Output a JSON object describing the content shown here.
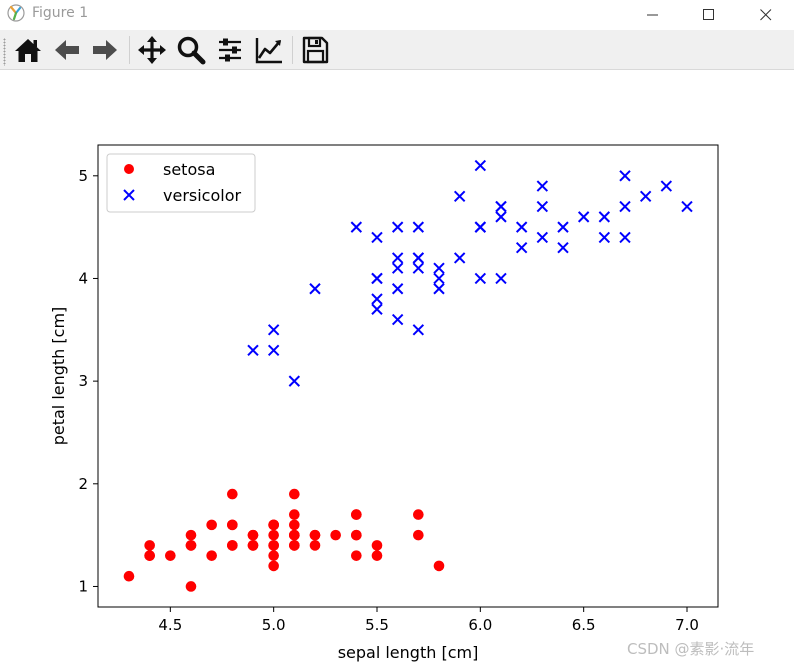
{
  "window": {
    "title": "Figure 1"
  },
  "toolbar": {
    "buttons": [
      {
        "name": "home-icon",
        "label": "Home"
      },
      {
        "name": "back-arrow-icon",
        "label": "Back"
      },
      {
        "name": "forward-arrow-icon",
        "label": "Forward"
      },
      {
        "name": "pan-icon",
        "label": "Pan"
      },
      {
        "name": "zoom-icon",
        "label": "Zoom"
      },
      {
        "name": "subplots-icon",
        "label": "Subplots"
      },
      {
        "name": "edit-axes-icon",
        "label": "Customize"
      },
      {
        "name": "save-icon",
        "label": "Save"
      }
    ]
  },
  "watermark": "CSDN @素影·流年",
  "chart_data": {
    "type": "scatter",
    "title": "",
    "xlabel": "sepal length [cm]",
    "ylabel": "petal length [cm]",
    "xlim": [
      4.15,
      7.15
    ],
    "ylim": [
      0.8,
      5.3
    ],
    "xticks": [
      "4.5",
      "5.0",
      "5.5",
      "6.0",
      "6.5",
      "7.0"
    ],
    "yticks": [
      "1",
      "2",
      "3",
      "4",
      "5"
    ],
    "grid": false,
    "legend_position": "top-left",
    "series": [
      {
        "name": "setosa",
        "marker": "circle",
        "color": "#ff0000",
        "points": [
          [
            5.1,
            1.4
          ],
          [
            4.9,
            1.4
          ],
          [
            4.7,
            1.3
          ],
          [
            4.6,
            1.5
          ],
          [
            5.0,
            1.4
          ],
          [
            5.4,
            1.7
          ],
          [
            4.6,
            1.4
          ],
          [
            5.0,
            1.5
          ],
          [
            4.4,
            1.4
          ],
          [
            4.9,
            1.5
          ],
          [
            5.4,
            1.5
          ],
          [
            4.8,
            1.6
          ],
          [
            4.8,
            1.4
          ],
          [
            4.3,
            1.1
          ],
          [
            5.8,
            1.2
          ],
          [
            5.7,
            1.5
          ],
          [
            5.4,
            1.3
          ],
          [
            5.1,
            1.4
          ],
          [
            5.7,
            1.7
          ],
          [
            5.1,
            1.5
          ],
          [
            5.4,
            1.7
          ],
          [
            5.1,
            1.5
          ],
          [
            4.6,
            1.0
          ],
          [
            5.1,
            1.7
          ],
          [
            4.8,
            1.9
          ],
          [
            5.0,
            1.6
          ],
          [
            5.0,
            1.6
          ],
          [
            5.2,
            1.5
          ],
          [
            5.2,
            1.4
          ],
          [
            4.7,
            1.6
          ],
          [
            4.8,
            1.6
          ],
          [
            5.4,
            1.5
          ],
          [
            5.2,
            1.5
          ],
          [
            5.5,
            1.4
          ],
          [
            4.9,
            1.5
          ],
          [
            5.0,
            1.2
          ],
          [
            5.5,
            1.3
          ],
          [
            4.9,
            1.4
          ],
          [
            4.4,
            1.3
          ],
          [
            5.1,
            1.5
          ],
          [
            5.0,
            1.3
          ],
          [
            4.5,
            1.3
          ],
          [
            4.4,
            1.3
          ],
          [
            5.0,
            1.6
          ],
          [
            5.1,
            1.9
          ],
          [
            4.8,
            1.4
          ],
          [
            5.1,
            1.6
          ],
          [
            4.6,
            1.4
          ],
          [
            5.3,
            1.5
          ],
          [
            5.0,
            1.4
          ]
        ]
      },
      {
        "name": "versicolor",
        "marker": "x",
        "color": "#0000ff",
        "points": [
          [
            7.0,
            4.7
          ],
          [
            6.4,
            4.5
          ],
          [
            6.9,
            4.9
          ],
          [
            5.5,
            4.0
          ],
          [
            6.5,
            4.6
          ],
          [
            5.7,
            4.5
          ],
          [
            6.3,
            4.7
          ],
          [
            4.9,
            3.3
          ],
          [
            6.6,
            4.6
          ],
          [
            5.2,
            3.9
          ],
          [
            5.0,
            3.5
          ],
          [
            5.9,
            4.2
          ],
          [
            6.0,
            4.0
          ],
          [
            6.1,
            4.7
          ],
          [
            5.6,
            3.6
          ],
          [
            6.7,
            4.4
          ],
          [
            5.6,
            4.5
          ],
          [
            5.8,
            4.1
          ],
          [
            6.2,
            4.5
          ],
          [
            5.6,
            3.9
          ],
          [
            5.9,
            4.8
          ],
          [
            6.1,
            4.0
          ],
          [
            6.3,
            4.9
          ],
          [
            6.1,
            4.7
          ],
          [
            6.4,
            4.3
          ],
          [
            6.6,
            4.4
          ],
          [
            6.8,
            4.8
          ],
          [
            6.7,
            5.0
          ],
          [
            6.0,
            4.5
          ],
          [
            5.7,
            3.5
          ],
          [
            5.5,
            3.8
          ],
          [
            5.5,
            3.7
          ],
          [
            5.8,
            3.9
          ],
          [
            6.0,
            5.1
          ],
          [
            5.4,
            4.5
          ],
          [
            6.0,
            4.5
          ],
          [
            6.7,
            4.7
          ],
          [
            6.3,
            4.4
          ],
          [
            5.6,
            4.1
          ],
          [
            5.5,
            4.0
          ],
          [
            5.5,
            4.4
          ],
          [
            6.1,
            4.6
          ],
          [
            5.8,
            4.0
          ],
          [
            5.0,
            3.3
          ],
          [
            5.6,
            4.2
          ],
          [
            5.7,
            4.2
          ],
          [
            5.7,
            4.2
          ],
          [
            6.2,
            4.3
          ],
          [
            5.1,
            3.0
          ],
          [
            5.7,
            4.1
          ]
        ]
      }
    ]
  }
}
